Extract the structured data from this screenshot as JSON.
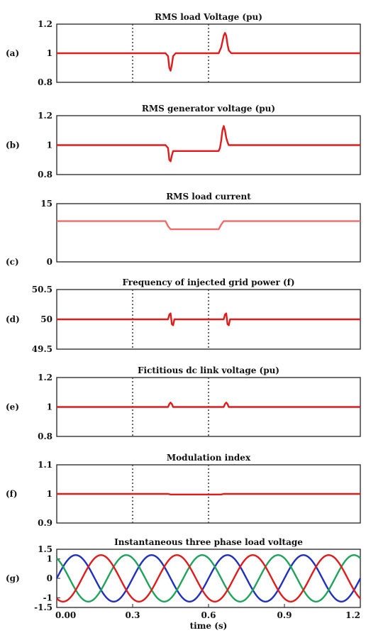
{
  "chart_data": [
    {
      "type": "line",
      "panel_label": "(a)",
      "title": "RMS load Voltage (pu)",
      "ylim": [
        0.8,
        1.2
      ],
      "yticks": [
        "1.2",
        "1",
        "0.8"
      ],
      "ytick_values": [
        1.2,
        1,
        0.8
      ],
      "vlines": [
        0.3,
        0.6
      ],
      "series": [
        {
          "color": "#e01b1b",
          "x": [
            0,
            0.43,
            0.44,
            0.445,
            0.45,
            0.455,
            0.46,
            0.47,
            0.64,
            0.65,
            0.66,
            0.665,
            0.67,
            0.675,
            0.68,
            0.69,
            1.2
          ],
          "y": [
            1,
            1,
            0.98,
            0.9,
            0.88,
            0.92,
            0.98,
            1,
            1,
            1.04,
            1.12,
            1.14,
            1.12,
            1.06,
            1.02,
            1,
            1
          ]
        }
      ]
    },
    {
      "type": "line",
      "panel_label": "(b)",
      "title": "RMS generator voltage (pu)",
      "ylim": [
        0.8,
        1.2
      ],
      "yticks": [
        "1.2",
        "1",
        "0.8"
      ],
      "ytick_values": [
        1.2,
        1,
        0.8
      ],
      "vlines": [],
      "series": [
        {
          "color": "#e01b1b",
          "x": [
            0,
            0.43,
            0.44,
            0.445,
            0.45,
            0.455,
            0.46,
            0.47,
            0.64,
            0.645,
            0.65,
            0.655,
            0.66,
            0.665,
            0.67,
            0.675,
            0.68,
            0.69,
            1.2
          ],
          "y": [
            1,
            1,
            0.98,
            0.9,
            0.89,
            0.93,
            0.96,
            0.96,
            0.96,
            0.98,
            1.03,
            1.1,
            1.13,
            1.1,
            1.05,
            1.02,
            1.0,
            1,
            1
          ]
        }
      ]
    },
    {
      "type": "line",
      "panel_label": "(c)",
      "title": "RMS load current",
      "ylim": [
        0,
        15
      ],
      "yticks": [
        "15",
        "0"
      ],
      "ytick_values": [
        15,
        0
      ],
      "vlines": [],
      "series": [
        {
          "color": "#f06a6a",
          "x": [
            0,
            0.43,
            0.44,
            0.45,
            0.64,
            0.65,
            0.66,
            1.2
          ],
          "y": [
            10.5,
            10.5,
            9.2,
            8.4,
            8.4,
            9.6,
            10.5,
            10.5
          ]
        }
      ]
    },
    {
      "type": "line",
      "panel_label": "(d)",
      "title": "Frequency of injected grid power (f)",
      "ylim": [
        49.5,
        50.5
      ],
      "yticks": [
        "50.5",
        "50",
        "49.5"
      ],
      "ytick_values": [
        50.5,
        50,
        49.5
      ],
      "vlines": [
        0.3,
        0.6
      ],
      "series": [
        {
          "color": "#e01b1b",
          "x": [
            0,
            0.44,
            0.445,
            0.45,
            0.455,
            0.46,
            0.465,
            0.66,
            0.665,
            0.67,
            0.675,
            0.68,
            0.685,
            1.2
          ],
          "y": [
            50,
            50,
            50.08,
            50.1,
            49.92,
            49.9,
            50,
            50,
            50.08,
            50.1,
            49.92,
            49.9,
            50,
            50
          ]
        }
      ]
    },
    {
      "type": "line",
      "panel_label": "(e)",
      "title": "Fictitious dc link voltage (pu)",
      "ylim": [
        0.8,
        1.2
      ],
      "yticks": [
        "1.2",
        "1",
        "0.8"
      ],
      "ytick_values": [
        1.2,
        1,
        0.8
      ],
      "vlines": [
        0.3,
        0.6
      ],
      "series": [
        {
          "color": "#e01b1b",
          "x": [
            0,
            0.44,
            0.445,
            0.45,
            0.455,
            0.46,
            0.66,
            0.665,
            0.67,
            0.675,
            0.68,
            1.2
          ],
          "y": [
            1,
            1,
            1.02,
            1.03,
            1.02,
            1,
            1,
            1.02,
            1.03,
            1.02,
            1,
            1
          ]
        }
      ]
    },
    {
      "type": "line",
      "panel_label": "(f)",
      "title": "Modulation index",
      "ylim": [
        0.9,
        1.1
      ],
      "yticks": [
        "1.1",
        "1",
        "0.9"
      ],
      "ytick_values": [
        1.1,
        1,
        0.9
      ],
      "vlines": [
        0.3,
        0.6
      ],
      "series": [
        {
          "color": "#e01b1b",
          "x": [
            0,
            0.44,
            0.45,
            0.65,
            0.66,
            1.2
          ],
          "y": [
            1,
            1,
            0.998,
            0.998,
            1,
            1
          ]
        }
      ]
    },
    {
      "type": "line",
      "panel_label": "(g)",
      "title": "Instantaneous three phase load voltage",
      "ylim": [
        -1.5,
        1.5
      ],
      "yticks": [
        "1.5",
        "1",
        "0",
        "-1",
        "-1.5"
      ],
      "ytick_values": [
        1.5,
        1,
        0,
        -1,
        -1.5
      ],
      "xticks": [
        "0.00",
        "0.3",
        "0.6",
        "0.9",
        "1.2"
      ],
      "xtick_values": [
        0,
        0.3,
        0.6,
        0.9,
        1.2
      ],
      "xlabel": "time (s)",
      "vlines": [],
      "waveform": {
        "amplitude": 1.2,
        "period": 0.3,
        "phases_deg": [
          0,
          120,
          240
        ]
      },
      "series": [
        {
          "color": "#1f2fbf"
        },
        {
          "color": "#1fa35a"
        },
        {
          "color": "#e01b1b"
        }
      ]
    }
  ],
  "xlim": [
    0,
    1.2
  ]
}
